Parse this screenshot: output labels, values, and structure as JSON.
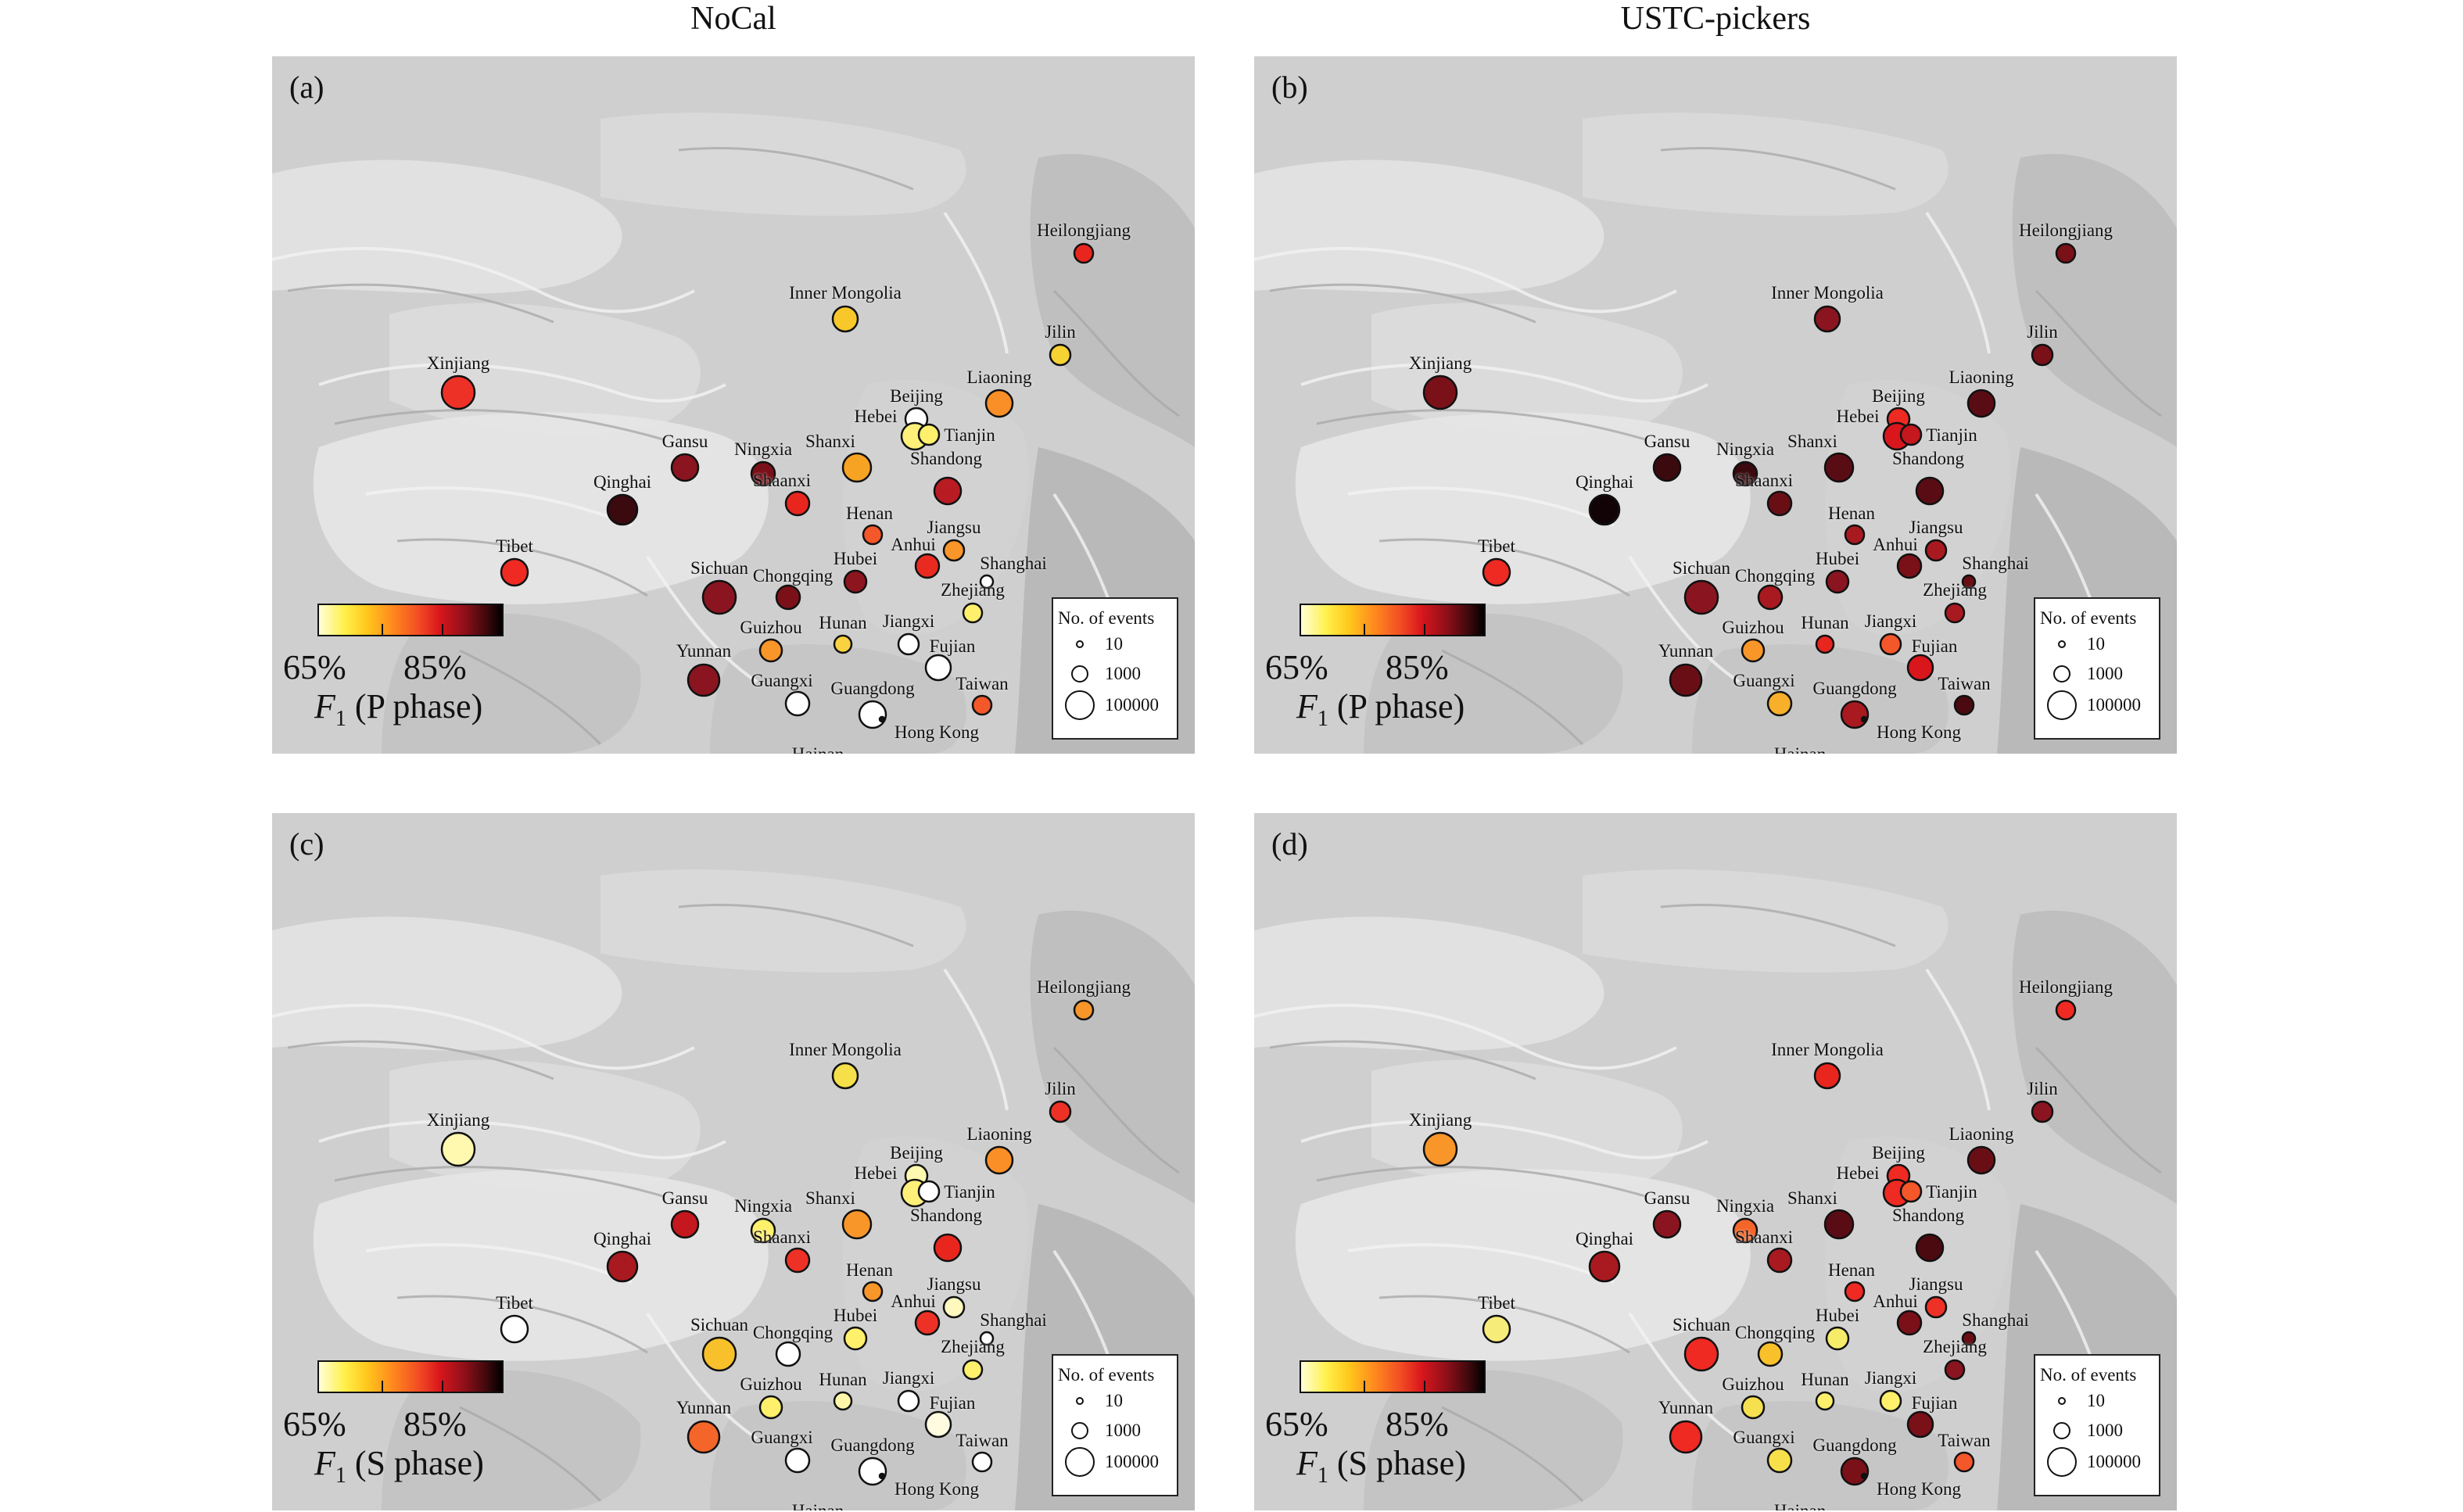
{
  "columns": [
    "NoCal",
    "USTC-pickers"
  ],
  "colorbar": {
    "min_label": "65%",
    "max_label": "85%",
    "colors": [
      "#ffffd8",
      "#fff04a",
      "#ffc81c",
      "#ff8a1e",
      "#f24a24",
      "#d8161c",
      "#8c0f19",
      "#3c080c",
      "#000000"
    ]
  },
  "legend": {
    "title": "No. of events",
    "entries": [
      {
        "label": "10",
        "events": 10
      },
      {
        "label": "1000",
        "events": 1000
      },
      {
        "label": "100000",
        "events": 100000
      }
    ]
  },
  "provinces": [
    "Heilongjiang",
    "Inner Mongolia",
    "Jilin",
    "Xinjiang",
    "Liaoning",
    "Beijing",
    "Hebei",
    "Tianjin",
    "Gansu",
    "Ningxia",
    "Shanxi",
    "Shandong",
    "Qinghai",
    "Shaanxi",
    "Henan",
    "Jiangsu",
    "Tibet",
    "Anhui",
    "Shanghai",
    "Sichuan",
    "Chongqing",
    "Hubei",
    "Zhejiang",
    "Guizhou",
    "Hunan",
    "Jiangxi",
    "Fujian",
    "Yunnan",
    "Guangxi",
    "Guangdong",
    "Taiwan",
    "Hong Kong",
    "Hainan"
  ],
  "panels": [
    {
      "label": "(a)",
      "phase_title": "(P phase)",
      "markers": [
        {
          "province": "Heilongjiang",
          "color": "#e8261e"
        },
        {
          "province": "Inner Mongolia",
          "color": "#f8c82a"
        },
        {
          "province": "Jilin",
          "color": "#f6d233"
        },
        {
          "province": "Xinjiang",
          "color": "#ee3126"
        },
        {
          "province": "Liaoning",
          "color": "#f98f26"
        },
        {
          "province": "Beijing",
          "color": "#ffffff"
        },
        {
          "province": "Hebei",
          "color": "#fff07a"
        },
        {
          "province": "Tianjin",
          "color": "#fff06c"
        },
        {
          "province": "Gansu",
          "color": "#8a1520"
        },
        {
          "province": "Ningxia",
          "color": "#7a1018"
        },
        {
          "province": "Shanxi",
          "color": "#f6a323"
        },
        {
          "province": "Shandong",
          "color": "#b81c22"
        },
        {
          "province": "Qinghai",
          "color": "#3a0a0e"
        },
        {
          "province": "Shaanxi",
          "color": "#e8261e"
        },
        {
          "province": "Henan",
          "color": "#f4572a"
        },
        {
          "province": "Jiangsu",
          "color": "#f8962a"
        },
        {
          "province": "Tibet",
          "color": "#ee2a22"
        },
        {
          "province": "Anhui",
          "color": "#e82a20"
        },
        {
          "province": "Shanghai",
          "color": "#ffffff"
        },
        {
          "province": "Sichuan",
          "color": "#8a1520"
        },
        {
          "province": "Chongqing",
          "color": "#7c1018"
        },
        {
          "province": "Hubei",
          "color": "#8c1520"
        },
        {
          "province": "Zhejiang",
          "color": "#fff06c"
        },
        {
          "province": "Guizhou",
          "color": "#f8962a"
        },
        {
          "province": "Hunan",
          "color": "#f8d240"
        },
        {
          "province": "Jiangxi",
          "color": "#ffffff"
        },
        {
          "province": "Fujian",
          "color": "#ffffff"
        },
        {
          "province": "Yunnan",
          "color": "#8a1520"
        },
        {
          "province": "Guangxi",
          "color": "#ffffff"
        },
        {
          "province": "Guangdong",
          "color": "#ffffff"
        },
        {
          "province": "Taiwan",
          "color": "#f4572a"
        },
        {
          "province": "Hong Kong",
          "color": "#111111"
        },
        {
          "province": "Hainan",
          "color": "#fff9c0"
        }
      ]
    },
    {
      "label": "(b)",
      "phase_title": "(P phase)",
      "markers": [
        {
          "province": "Heilongjiang",
          "color": "#7a1018"
        },
        {
          "province": "Inner Mongolia",
          "color": "#8a1520"
        },
        {
          "province": "Jilin",
          "color": "#7a1018"
        },
        {
          "province": "Xinjiang",
          "color": "#7a1018"
        },
        {
          "province": "Liaoning",
          "color": "#5a0c14"
        },
        {
          "province": "Beijing",
          "color": "#ee2a22"
        },
        {
          "province": "Hebei",
          "color": "#d8161c"
        },
        {
          "province": "Tianjin",
          "color": "#c4181e"
        },
        {
          "province": "Gansu",
          "color": "#3a0a0e"
        },
        {
          "province": "Ningxia",
          "color": "#3a0a0e"
        },
        {
          "province": "Shanxi",
          "color": "#5a0c14"
        },
        {
          "province": "Shandong",
          "color": "#5a0c14"
        },
        {
          "province": "Qinghai",
          "color": "#120406"
        },
        {
          "province": "Shaanxi",
          "color": "#6a0e16"
        },
        {
          "province": "Henan",
          "color": "#a81a20"
        },
        {
          "province": "Jiangsu",
          "color": "#a81a20"
        },
        {
          "province": "Tibet",
          "color": "#ee2a22"
        },
        {
          "province": "Anhui",
          "color": "#7a1018"
        },
        {
          "province": "Shanghai",
          "color": "#6a0e16"
        },
        {
          "province": "Sichuan",
          "color": "#8a1520"
        },
        {
          "province": "Chongqing",
          "color": "#a81a20"
        },
        {
          "province": "Hubei",
          "color": "#8a1520"
        },
        {
          "province": "Zhejiang",
          "color": "#a81a20"
        },
        {
          "province": "Guizhou",
          "color": "#f8962a"
        },
        {
          "province": "Hunan",
          "color": "#e8261e"
        },
        {
          "province": "Jiangxi",
          "color": "#f4572a"
        },
        {
          "province": "Fujian",
          "color": "#d8161c"
        },
        {
          "province": "Yunnan",
          "color": "#6a0e16"
        },
        {
          "province": "Guangxi",
          "color": "#f8b02a"
        },
        {
          "province": "Guangdong",
          "color": "#a81a20"
        },
        {
          "province": "Taiwan",
          "color": "#4a0a10"
        },
        {
          "province": "Hong Kong",
          "color": "#111111"
        },
        {
          "province": "Hainan",
          "color": "#a81a20"
        }
      ]
    },
    {
      "label": "(c)",
      "phase_title": "(S phase)",
      "markers": [
        {
          "province": "Heilongjiang",
          "color": "#f8962a"
        },
        {
          "province": "Inner Mongolia",
          "color": "#f6e04a"
        },
        {
          "province": "Jilin",
          "color": "#ee3126"
        },
        {
          "province": "Xinjiang",
          "color": "#fff9b0"
        },
        {
          "province": "Liaoning",
          "color": "#f98f26"
        },
        {
          "province": "Beijing",
          "color": "#fffab0"
        },
        {
          "province": "Hebei",
          "color": "#fff07a"
        },
        {
          "province": "Tianjin",
          "color": "#ffffff"
        },
        {
          "province": "Gansu",
          "color": "#c4181e"
        },
        {
          "province": "Ningxia",
          "color": "#fff06c"
        },
        {
          "province": "Shanxi",
          "color": "#f8962a"
        },
        {
          "province": "Shandong",
          "color": "#e8261e"
        },
        {
          "province": "Qinghai",
          "color": "#a81a20"
        },
        {
          "province": "Shaanxi",
          "color": "#ee3126"
        },
        {
          "province": "Henan",
          "color": "#f8962a"
        },
        {
          "province": "Jiangsu",
          "color": "#fff9c0"
        },
        {
          "province": "Tibet",
          "color": "#ffffff"
        },
        {
          "province": "Anhui",
          "color": "#ee3126"
        },
        {
          "province": "Shanghai",
          "color": "#ffffff"
        },
        {
          "province": "Sichuan",
          "color": "#f8c02a"
        },
        {
          "province": "Chongqing",
          "color": "#ffffff"
        },
        {
          "province": "Hubei",
          "color": "#fff06c"
        },
        {
          "province": "Zhejiang",
          "color": "#fff06c"
        },
        {
          "province": "Guizhou",
          "color": "#fff06c"
        },
        {
          "province": "Hunan",
          "color": "#fff7a8"
        },
        {
          "province": "Jiangxi",
          "color": "#ffffff"
        },
        {
          "province": "Fujian",
          "color": "#fffbe0"
        },
        {
          "province": "Yunnan",
          "color": "#f4652a"
        },
        {
          "province": "Guangxi",
          "color": "#ffffff"
        },
        {
          "province": "Guangdong",
          "color": "#ffffff"
        },
        {
          "province": "Taiwan",
          "color": "#ffffff"
        },
        {
          "province": "Hong Kong",
          "color": "#111111"
        },
        {
          "province": "Hainan",
          "color": "#fff9c0"
        }
      ]
    },
    {
      "label": "(d)",
      "phase_title": "(S phase)",
      "markers": [
        {
          "province": "Heilongjiang",
          "color": "#ee2a22"
        },
        {
          "province": "Inner Mongolia",
          "color": "#e8261e"
        },
        {
          "province": "Jilin",
          "color": "#8a1520"
        },
        {
          "province": "Xinjiang",
          "color": "#f8962a"
        },
        {
          "province": "Liaoning",
          "color": "#6a0e16"
        },
        {
          "province": "Beijing",
          "color": "#ee2a22"
        },
        {
          "province": "Hebei",
          "color": "#ee2a22"
        },
        {
          "province": "Tianjin",
          "color": "#f4572a"
        },
        {
          "province": "Gansu",
          "color": "#8a1520"
        },
        {
          "province": "Ningxia",
          "color": "#f4652a"
        },
        {
          "province": "Shanxi",
          "color": "#5a0c14"
        },
        {
          "province": "Shandong",
          "color": "#4a0a10"
        },
        {
          "province": "Qinghai",
          "color": "#a81a20"
        },
        {
          "province": "Shaanxi",
          "color": "#a81a20"
        },
        {
          "province": "Henan",
          "color": "#ee2a22"
        },
        {
          "province": "Jiangsu",
          "color": "#ee3126"
        },
        {
          "province": "Tibet",
          "color": "#f6ec7a"
        },
        {
          "province": "Anhui",
          "color": "#7a1018"
        },
        {
          "province": "Shanghai",
          "color": "#6a0e16"
        },
        {
          "province": "Sichuan",
          "color": "#ee2a22"
        },
        {
          "province": "Chongqing",
          "color": "#f8c02a"
        },
        {
          "province": "Hubei",
          "color": "#f6ec6a"
        },
        {
          "province": "Zhejiang",
          "color": "#8a1520"
        },
        {
          "province": "Guizhou",
          "color": "#f6e050"
        },
        {
          "province": "Hunan",
          "color": "#fff06c"
        },
        {
          "province": "Jiangxi",
          "color": "#fff06c"
        },
        {
          "province": "Fujian",
          "color": "#7a1018"
        },
        {
          "province": "Yunnan",
          "color": "#ee2a22"
        },
        {
          "province": "Guangxi",
          "color": "#f8e04a"
        },
        {
          "province": "Guangdong",
          "color": "#7a1018"
        },
        {
          "province": "Taiwan",
          "color": "#f4572a"
        },
        {
          "province": "Hong Kong",
          "color": "#111111"
        },
        {
          "province": "Hainan",
          "color": "#c4181e"
        }
      ]
    }
  ]
}
